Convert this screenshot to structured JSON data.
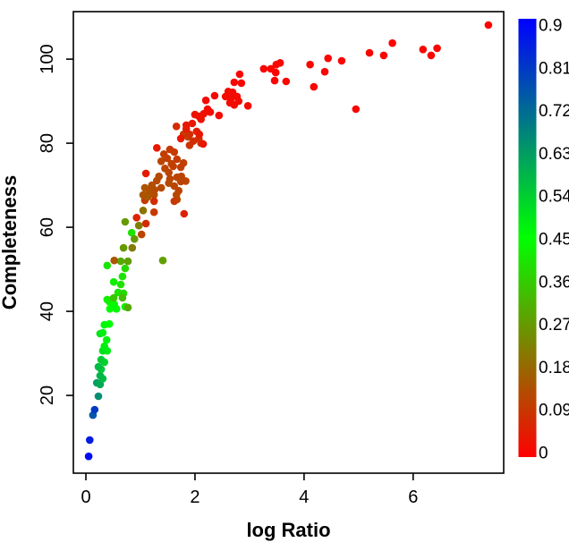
{
  "figure": {
    "background": "#ffffff"
  },
  "chart_data": {
    "type": "scatter",
    "title": "",
    "xlabel": "log Ratio",
    "ylabel": "Completeness",
    "xlim": [
      -0.23,
      7.66
    ],
    "ylim": [
      1.5,
      111.3
    ],
    "xticks": [
      0,
      2,
      4,
      6
    ],
    "xtick_labels": [
      "0",
      "2",
      "4",
      "6"
    ],
    "yticks": [
      20,
      40,
      60,
      80,
      100
    ],
    "ytick_labels": [
      "20",
      "40",
      "60",
      "80",
      "100"
    ],
    "grid": false,
    "legend_position": "right-colorbar",
    "color_encoding": "third variable (0 to 0.9) mapped red (0) through green (0.45) to blue (0.9); value decreases as Completeness rises",
    "colorbar": {
      "min": 0,
      "max": 0.9,
      "ticks": [
        0,
        0.09,
        0.18,
        0.27,
        0.36,
        0.45,
        0.54,
        0.63,
        0.72,
        0.81,
        0.9
      ],
      "tick_labels": [
        "0",
        "0.09",
        "0.18",
        "0.27",
        "0.36",
        "0.45",
        "0.54",
        "0.63",
        "0.72",
        "0.81",
        "0.9"
      ],
      "gradient_stops_bottom_to_top": [
        "#ff0000",
        "#00ff00",
        "#0000ff"
      ]
    },
    "point_radius_px": 4.3,
    "points": [
      [
        0.05,
        5.5,
        0.88
      ],
      [
        0.07,
        9.4,
        0.85
      ],
      [
        0.13,
        15.3,
        0.75
      ],
      [
        0.16,
        16.6,
        0.8
      ],
      [
        0.23,
        19.8,
        0.65
      ],
      [
        0.2,
        23.0,
        0.62
      ],
      [
        0.26,
        22.6,
        0.6
      ],
      [
        0.31,
        24.0,
        0.57
      ],
      [
        0.26,
        24.7,
        0.58
      ],
      [
        0.28,
        26.2,
        0.55
      ],
      [
        0.23,
        26.8,
        0.57
      ],
      [
        0.34,
        27.9,
        0.53
      ],
      [
        0.28,
        28.5,
        0.54
      ],
      [
        0.39,
        30.6,
        0.48
      ],
      [
        0.31,
        30.6,
        0.5
      ],
      [
        0.34,
        31.7,
        0.48
      ],
      [
        0.38,
        33.2,
        0.47
      ],
      [
        0.26,
        34.7,
        0.5
      ],
      [
        0.31,
        34.9,
        0.48
      ],
      [
        0.43,
        37.0,
        0.45
      ],
      [
        0.34,
        36.8,
        0.46
      ],
      [
        0.56,
        40.6,
        0.44
      ],
      [
        0.44,
        40.6,
        0.45
      ],
      [
        0.72,
        41.1,
        0.42
      ],
      [
        0.52,
        41.7,
        0.44
      ],
      [
        0.43,
        42.3,
        0.43
      ],
      [
        0.39,
        42.8,
        0.42
      ],
      [
        0.59,
        44.5,
        0.4
      ],
      [
        0.69,
        44.3,
        0.38
      ],
      [
        0.64,
        46.4,
        0.4
      ],
      [
        0.51,
        47.0,
        0.42
      ],
      [
        0.67,
        48.3,
        0.4
      ],
      [
        0.72,
        50.2,
        0.38
      ],
      [
        0.39,
        50.9,
        0.4
      ],
      [
        0.84,
        58.7,
        0.4
      ],
      [
        0.51,
        43.2,
        0.35
      ],
      [
        0.67,
        43.2,
        0.33
      ],
      [
        0.77,
        40.9,
        0.3
      ],
      [
        0.64,
        51.9,
        0.3
      ],
      [
        0.77,
        51.9,
        0.28
      ],
      [
        1.41,
        52.1,
        0.28
      ],
      [
        0.89,
        57.2,
        0.27
      ],
      [
        0.69,
        55.1,
        0.27
      ],
      [
        0.85,
        55.1,
        0.22
      ],
      [
        0.72,
        61.3,
        0.27
      ],
      [
        0.97,
        60.4,
        0.22
      ],
      [
        1.05,
        64.0,
        0.2
      ],
      [
        0.52,
        52.1,
        0.15
      ],
      [
        1.02,
        58.3,
        0.12
      ],
      [
        1.08,
        66.4,
        0.1
      ],
      [
        1.67,
        66.6,
        0.12
      ],
      [
        1.05,
        67.7,
        0.15
      ],
      [
        1.13,
        67.2,
        0.15
      ],
      [
        1.25,
        67.7,
        0.14
      ],
      [
        1.66,
        67.7,
        0.13
      ],
      [
        1.08,
        69.4,
        0.15
      ],
      [
        1.16,
        68.7,
        0.14
      ],
      [
        1.26,
        68.9,
        0.13
      ],
      [
        1.38,
        69.4,
        0.13
      ],
      [
        1.62,
        69.8,
        0.12
      ],
      [
        1.21,
        70.0,
        0.14
      ],
      [
        1.7,
        68.7,
        0.12
      ],
      [
        1.34,
        72.1,
        0.13
      ],
      [
        1.3,
        71.1,
        0.13
      ],
      [
        1.54,
        71.5,
        0.12
      ],
      [
        1.67,
        71.9,
        0.12
      ],
      [
        1.74,
        70.9,
        0.12
      ],
      [
        1.75,
        72.1,
        0.12
      ],
      [
        1.74,
        74.3,
        0.11
      ],
      [
        1.57,
        75.1,
        0.12
      ],
      [
        1.38,
        75.7,
        0.12
      ],
      [
        1.79,
        75.3,
        0.11
      ],
      [
        1.49,
        76.4,
        0.11
      ],
      [
        1.43,
        77.4,
        0.11
      ],
      [
        1.62,
        77.9,
        0.1
      ],
      [
        1.67,
        76.2,
        0.1
      ],
      [
        1.54,
        78.5,
        0.1
      ],
      [
        1.45,
        74.0,
        0.12
      ],
      [
        1.52,
        73.0,
        0.12
      ],
      [
        1.6,
        74.5,
        0.11
      ],
      [
        1.83,
        71.0,
        0.12
      ],
      [
        1.52,
        70.5,
        0.13
      ],
      [
        1.87,
        81.5,
        0.12
      ],
      [
        1.79,
        82.1,
        0.1
      ],
      [
        1.9,
        79.5,
        0.09
      ],
      [
        1.97,
        80.5,
        0.08
      ],
      [
        2.11,
        80.0,
        0.08
      ],
      [
        2.07,
        81.1,
        0.08
      ],
      [
        1.9,
        82.1,
        0.08
      ],
      [
        1.66,
        84.0,
        0.08
      ],
      [
        1.1,
        60.9,
        0.08
      ],
      [
        0.93,
        62.3,
        0.06
      ],
      [
        1.25,
        63.6,
        0.1
      ],
      [
        1.8,
        63.2,
        0.06
      ],
      [
        1.25,
        66.2,
        0.08
      ],
      [
        1.62,
        66.2,
        0.1
      ],
      [
        1.1,
        72.8,
        0.05
      ],
      [
        1.3,
        78.9,
        0.04
      ],
      [
        1.84,
        83.4,
        0.05
      ],
      [
        2.03,
        82.8,
        0.05
      ],
      [
        2.15,
        79.8,
        0.04
      ],
      [
        1.74,
        81.1,
        0.04
      ],
      [
        2.08,
        82.1,
        0.04
      ],
      [
        1.84,
        84.3,
        0.04
      ],
      [
        1.95,
        84.7,
        0.04
      ],
      [
        2.11,
        85.7,
        0.03
      ],
      [
        2.07,
        86.4,
        0.03
      ],
      [
        2.0,
        86.8,
        0.03
      ],
      [
        2.16,
        87.0,
        0.03
      ],
      [
        2.28,
        87.4,
        0.02
      ],
      [
        2.23,
        88.1,
        0.02
      ],
      [
        2.44,
        86.6,
        0.02
      ],
      [
        2.36,
        91.3,
        0.02
      ],
      [
        2.2,
        90.2,
        0.02
      ],
      [
        2.97,
        88.9,
        0.02
      ],
      [
        2.61,
        92.3,
        0.02
      ],
      [
        2.69,
        92.1,
        0.02
      ],
      [
        2.56,
        91.1,
        0.02
      ],
      [
        2.66,
        90.6,
        0.02
      ],
      [
        2.77,
        91.1,
        0.02
      ],
      [
        2.8,
        90.0,
        0.02
      ],
      [
        2.64,
        89.6,
        0.02
      ],
      [
        2.72,
        89.1,
        0.02
      ],
      [
        2.82,
        96.4,
        0.01
      ],
      [
        2.72,
        94.5,
        0.01
      ],
      [
        2.85,
        94.3,
        0.01
      ],
      [
        3.26,
        97.7,
        0.01
      ],
      [
        3.39,
        97.7,
        0.01
      ],
      [
        3.49,
        98.7,
        0.01
      ],
      [
        3.56,
        99.1,
        0.01
      ],
      [
        3.48,
        96.8,
        0.01
      ],
      [
        3.46,
        94.9,
        0.01
      ],
      [
        3.67,
        94.7,
        0.01
      ],
      [
        4.11,
        98.7,
        0.01
      ],
      [
        4.18,
        93.4,
        0.01
      ],
      [
        4.38,
        97.0,
        0.01
      ],
      [
        4.44,
        100.2,
        0.01
      ],
      [
        4.69,
        99.6,
        0.01
      ],
      [
        4.95,
        88.1,
        0.01
      ],
      [
        5.2,
        101.5,
        0.01
      ],
      [
        5.46,
        100.9,
        0.01
      ],
      [
        5.62,
        103.8,
        0.01
      ],
      [
        6.18,
        102.3,
        0.01
      ],
      [
        6.33,
        100.9,
        0.01
      ],
      [
        6.44,
        102.6,
        0.01
      ],
      [
        7.38,
        108.1,
        0.0
      ]
    ]
  }
}
